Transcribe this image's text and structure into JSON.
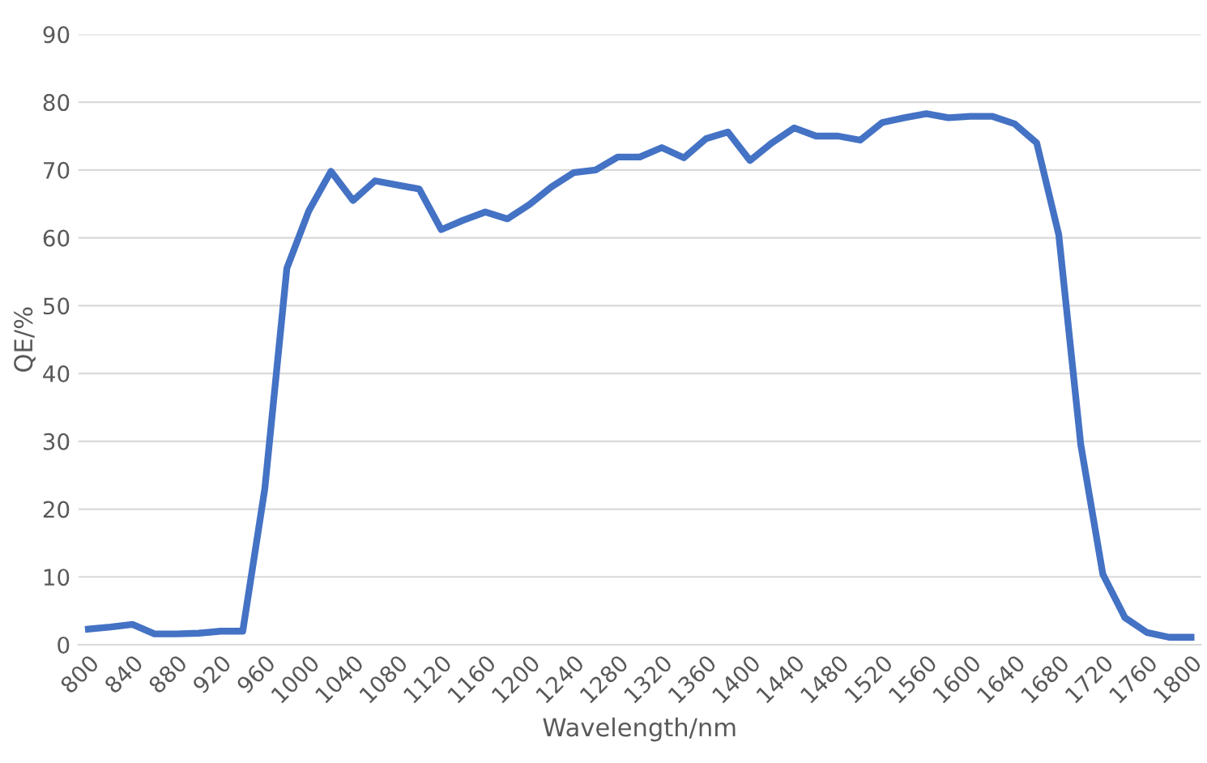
{
  "chart_data": {
    "type": "line",
    "xlabel": "Wavelength/nm",
    "ylabel": "QE/%",
    "x": [
      800,
      820,
      840,
      860,
      880,
      900,
      920,
      940,
      960,
      980,
      1000,
      1020,
      1040,
      1060,
      1080,
      1100,
      1120,
      1140,
      1160,
      1180,
      1200,
      1220,
      1240,
      1260,
      1280,
      1300,
      1320,
      1340,
      1360,
      1380,
      1400,
      1420,
      1440,
      1460,
      1480,
      1500,
      1520,
      1540,
      1560,
      1580,
      1600,
      1620,
      1640,
      1660,
      1680,
      1700,
      1720,
      1740,
      1760,
      1780,
      1800
    ],
    "series": [
      {
        "color": "#4472c4",
        "values": [
          2.3,
          2.6,
          3.0,
          1.6,
          1.6,
          1.7,
          2.0,
          2.0,
          23,
          55.5,
          64,
          69.8,
          65.5,
          68.4,
          67.8,
          67.2,
          61.2,
          62.6,
          63.8,
          62.8,
          64.9,
          67.5,
          69.6,
          70.0,
          71.9,
          71.9,
          73.3,
          71.8,
          74.6,
          75.6,
          71.4,
          74.0,
          76.2,
          75.0,
          75.0,
          74.4,
          77.0,
          77.7,
          78.3,
          77.7,
          77.9,
          77.9,
          76.8,
          74.0,
          60.5,
          29.5,
          10.4,
          4.0,
          1.8,
          1.1,
          1.1
        ]
      }
    ],
    "xlim": [
      791,
      1809
    ],
    "xticks": [
      800,
      840,
      880,
      920,
      960,
      1000,
      1040,
      1080,
      1120,
      1160,
      1200,
      1240,
      1280,
      1320,
      1360,
      1400,
      1440,
      1480,
      1520,
      1560,
      1600,
      1640,
      1680,
      1720,
      1760,
      1800
    ],
    "ylim": [
      0,
      90
    ],
    "yticks": [
      0,
      10,
      20,
      30,
      40,
      50,
      60,
      70,
      80,
      90
    ],
    "grid": "y",
    "marker": "none",
    "line_style": "solid",
    "legend": false
  }
}
